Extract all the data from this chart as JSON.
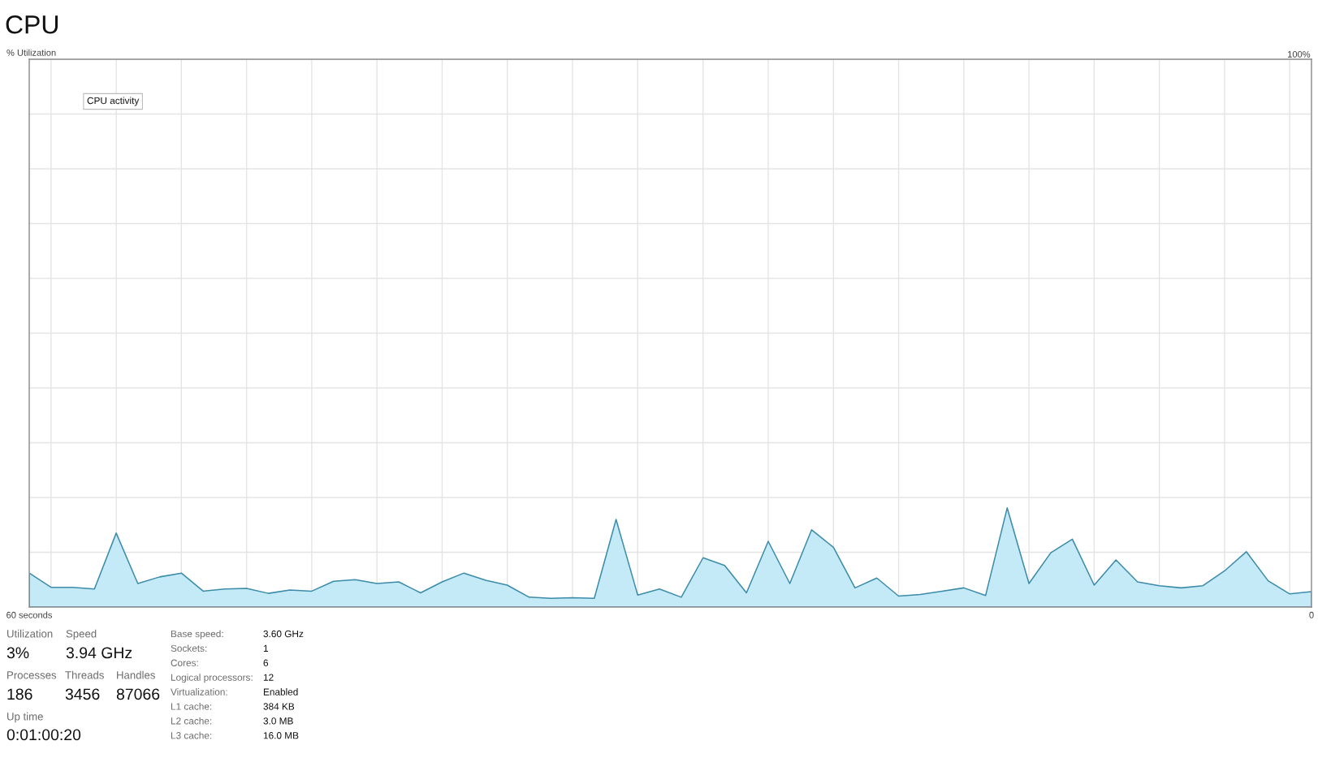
{
  "chart_data": {
    "type": "area",
    "title": "CPU",
    "ylabel": "% Utilization",
    "x": [
      60.0,
      58.98,
      57.97,
      56.95,
      55.93,
      54.92,
      53.9,
      52.88,
      51.86,
      50.85,
      49.83,
      48.81,
      47.8,
      46.78,
      45.76,
      44.75,
      43.73,
      42.71,
      41.69,
      40.68,
      39.66,
      38.64,
      37.63,
      36.61,
      35.59,
      34.58,
      33.56,
      32.54,
      31.53,
      30.51,
      29.49,
      28.47,
      27.46,
      26.44,
      25.42,
      24.41,
      23.39,
      22.37,
      21.36,
      20.34,
      19.32,
      18.31,
      17.29,
      16.27,
      15.25,
      14.24,
      13.22,
      12.2,
      11.19,
      10.17,
      9.15,
      8.14,
      7.12,
      6.1,
      5.08,
      4.07,
      3.05,
      2.03,
      1.02,
      0.0
    ],
    "series": [
      {
        "color": "#c4eaf8",
        "values": [
          6.2,
          3.6,
          3.6,
          3.3,
          13.5,
          4.3,
          5.5,
          6.2,
          2.9,
          3.3,
          3.4,
          2.5,
          3.1,
          2.9,
          4.7,
          5.0,
          4.3,
          4.6,
          2.6,
          4.6,
          6.2,
          4.9,
          4.0,
          1.8,
          1.6,
          1.7,
          1.6,
          16.0,
          2.2,
          3.3,
          1.8,
          9.0,
          7.6,
          2.6,
          12.0,
          4.3,
          14.1,
          10.9,
          3.5,
          5.3,
          2.0,
          2.3,
          2.9,
          3.5,
          2.1,
          18.1,
          4.3,
          9.9,
          12.4,
          4.0,
          8.6,
          4.6,
          3.9,
          3.5,
          3.9,
          6.6,
          10.1,
          4.8,
          2.4,
          2.8
        ]
      }
    ],
    "xlim": [
      60,
      0
    ],
    "xticks": [
      {
        "value": 60,
        "label": "60 seconds"
      },
      {
        "value": 58.98,
        "label": null
      },
      {
        "value": 55.93,
        "label": null
      },
      {
        "value": 52.88,
        "label": null
      },
      {
        "value": 49.83,
        "label": null
      },
      {
        "value": 46.78,
        "label": null
      },
      {
        "value": 43.73,
        "label": null
      },
      {
        "value": 40.68,
        "label": null
      },
      {
        "value": 37.63,
        "label": null
      },
      {
        "value": 34.58,
        "label": null
      },
      {
        "value": 31.53,
        "label": null
      },
      {
        "value": 28.47,
        "label": null
      },
      {
        "value": 25.42,
        "label": null
      },
      {
        "value": 22.37,
        "label": null
      },
      {
        "value": 19.32,
        "label": null
      },
      {
        "value": 16.27,
        "label": null
      },
      {
        "value": 13.22,
        "label": null
      },
      {
        "value": 10.17,
        "label": null
      },
      {
        "value": 7.12,
        "label": null
      },
      {
        "value": 4.07,
        "label": null
      },
      {
        "value": 1.02,
        "label": null
      },
      0
    ],
    "ylim": [
      0,
      100
    ],
    "yticks": [
      {
        "value": 0,
        "label": null
      },
      {
        "value": 10,
        "label": null
      },
      {
        "value": 20,
        "label": null
      },
      {
        "value": 30,
        "label": null
      },
      {
        "value": 40,
        "label": null
      },
      {
        "value": 50,
        "label": null
      },
      {
        "value": 60,
        "label": null
      },
      {
        "value": 70,
        "label": null
      },
      {
        "value": 80,
        "label": null
      },
      {
        "value": 90,
        "label": null
      },
      {
        "value": 100,
        "label": "100%"
      }
    ],
    "grid": true,
    "annotations": [
      "CPU activity",
      "Utilization",
      "3%",
      "Speed",
      "3.94 GHz",
      "Processes",
      "186",
      "Threads",
      "3456",
      "Handles",
      "87066",
      "Up time",
      "0:01:00:20",
      "Base speed:",
      "3.60 GHz",
      "Sockets:",
      "1",
      "Cores:",
      "6",
      "Logical processors:",
      "12",
      "Virtualization:",
      "Enabled",
      "L1 cache:",
      "384 KB",
      "L2 cache:",
      "3.0 MB",
      "L3 cache:",
      "16.0 MB"
    ]
  }
}
